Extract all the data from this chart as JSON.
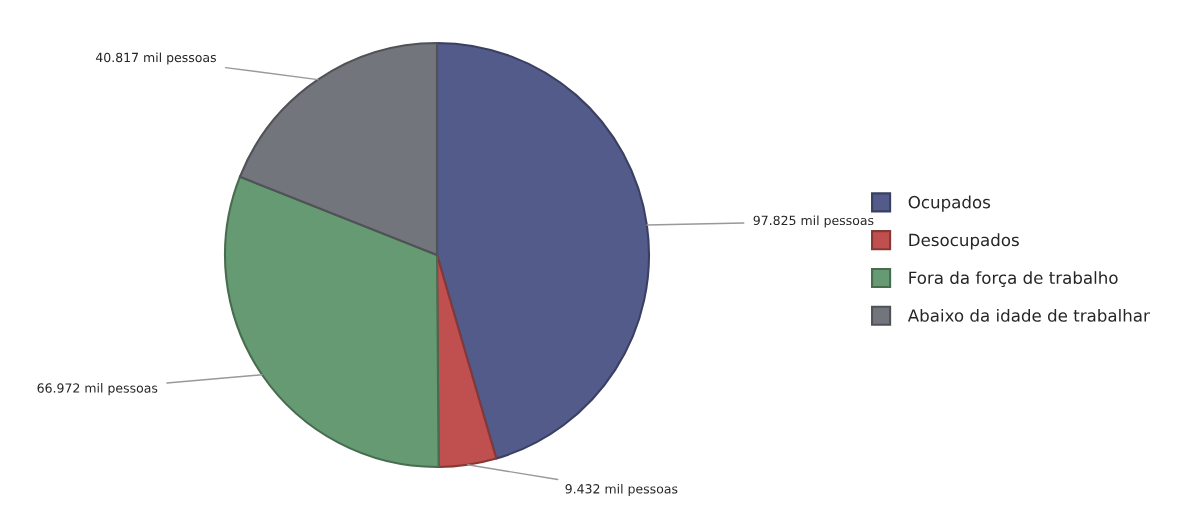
{
  "chart_data": {
    "type": "pie",
    "categories": [
      "Ocupados",
      "Desocupados",
      "Fora da força de trabalho",
      "Abaixo da idade de trabalhar"
    ],
    "values": [
      97825,
      9432,
      66972,
      40817
    ],
    "value_labels": [
      "97.825 mil pessoas",
      "9.432 mil pessoas",
      "66.972 mil pessoas",
      "40.817 mil pessoas"
    ],
    "colors": [
      "#535b8b",
      "#c0504f",
      "#669a72",
      "#73757d"
    ],
    "legend": "right"
  }
}
